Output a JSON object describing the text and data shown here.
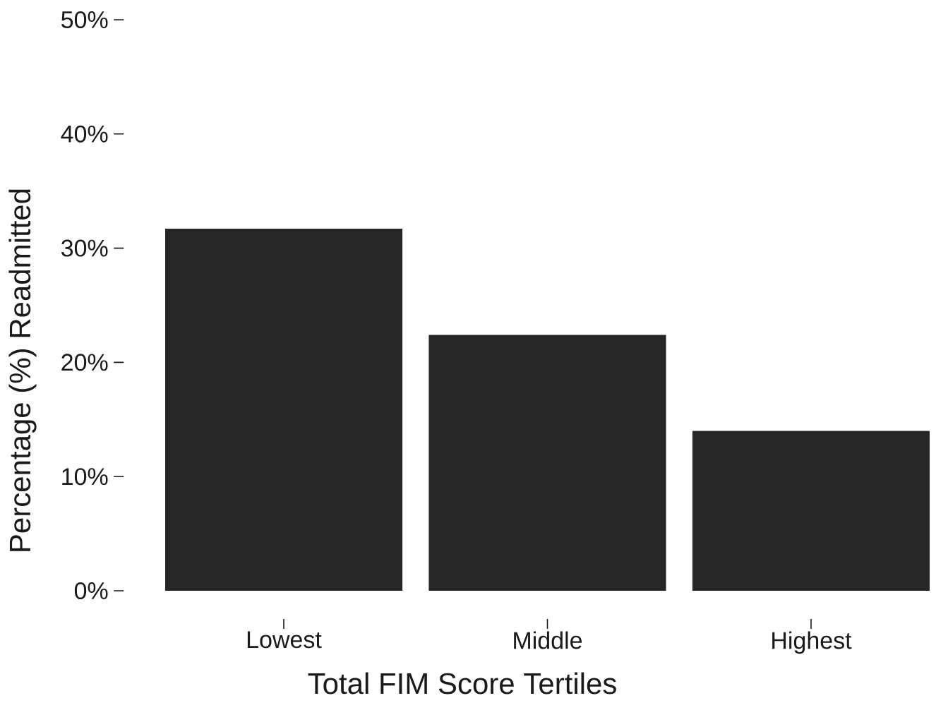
{
  "chart_data": {
    "type": "bar",
    "xlabel": "Total FIM Score Tertiles",
    "ylabel": "Percentage (%) Readmitted",
    "categories": [
      "Lowest",
      "Middle",
      "Highest"
    ],
    "values": [
      31.7,
      22.4,
      14.0
    ],
    "color": "#262626",
    "ylim": [
      0,
      50
    ],
    "yticks": [
      {
        "value": 0,
        "label": "0%"
      },
      {
        "value": 10,
        "label": "10%"
      },
      {
        "value": 20,
        "label": "20%"
      },
      {
        "value": 30,
        "label": "30%"
      },
      {
        "value": 40,
        "label": "40%"
      },
      {
        "value": 50,
        "label": "50%"
      }
    ]
  }
}
